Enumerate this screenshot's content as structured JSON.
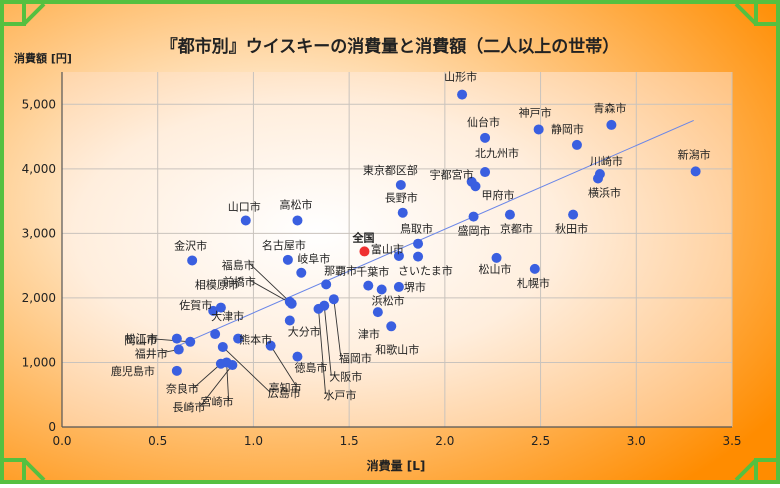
{
  "chart_data": {
    "type": "scatter",
    "title": "『都市別』ウイスキーの消費量と消費額（二人以上の世帯）",
    "xlabel": "消費量 [L]",
    "ylabel": "消費額 [円]",
    "xlim": [
      0,
      3.5
    ],
    "ylim": [
      0,
      5500
    ],
    "x_ticks": [
      "0.0",
      "0.5",
      "1.0",
      "1.5",
      "2.0",
      "2.5",
      "3.0",
      "3.5"
    ],
    "y_ticks": [
      "0",
      "1,000",
      "2,000",
      "3,000",
      "4,000",
      "5,000"
    ],
    "grid": true,
    "trendline": {
      "x1": 0.6,
      "y1": 1250,
      "x2": 3.3,
      "y2": 4750
    },
    "colors": {
      "point": "#3a5fe0",
      "highlight": "#f03030",
      "trend": "#6a86e8",
      "frame": "#55c040",
      "background": "#ff9a1a"
    },
    "highlight": {
      "name": "全国",
      "x": 1.58,
      "y": 2720
    },
    "points": [
      {
        "name": "山形市",
        "x": 2.09,
        "y": 5150
      },
      {
        "name": "青森市",
        "x": 2.87,
        "y": 4680
      },
      {
        "name": "神戸市",
        "x": 2.49,
        "y": 4610
      },
      {
        "name": "仙台市",
        "x": 2.21,
        "y": 4480
      },
      {
        "name": "静岡市",
        "x": 2.69,
        "y": 4370
      },
      {
        "name": "新潟市",
        "x": 3.31,
        "y": 3960
      },
      {
        "name": "川崎市",
        "x": 2.81,
        "y": 3920
      },
      {
        "name": "横浜市",
        "x": 2.8,
        "y": 3850
      },
      {
        "name": "北九州市",
        "x": 2.21,
        "y": 3950
      },
      {
        "name": "宇都宮市",
        "x": 2.14,
        "y": 3800
      },
      {
        "name": "甲府市",
        "x": 2.16,
        "y": 3730
      },
      {
        "name": "東京都区部",
        "x": 1.77,
        "y": 3750
      },
      {
        "name": "長野市",
        "x": 1.78,
        "y": 3320
      },
      {
        "name": "盛岡市",
        "x": 2.15,
        "y": 3260
      },
      {
        "name": "京都市",
        "x": 2.34,
        "y": 3290
      },
      {
        "name": "秋田市",
        "x": 2.67,
        "y": 3290
      },
      {
        "name": "山口市",
        "x": 0.96,
        "y": 3200
      },
      {
        "name": "高松市",
        "x": 1.23,
        "y": 3200
      },
      {
        "name": "鳥取市",
        "x": 1.86,
        "y": 2840
      },
      {
        "name": "富山市",
        "x": 1.76,
        "y": 2650
      },
      {
        "name": "さいたま市",
        "x": 1.86,
        "y": 2640
      },
      {
        "name": "松山市",
        "x": 2.27,
        "y": 2620
      },
      {
        "name": "札幌市",
        "x": 2.47,
        "y": 2450
      },
      {
        "name": "金沢市",
        "x": 0.68,
        "y": 2580
      },
      {
        "name": "名古屋市",
        "x": 1.18,
        "y": 2590
      },
      {
        "name": "岐阜市",
        "x": 1.25,
        "y": 2390
      },
      {
        "name": "福島市",
        "x": 1.19,
        "y": 1940
      },
      {
        "name": "前橋市",
        "x": 1.2,
        "y": 1910
      },
      {
        "name": "那覇市",
        "x": 1.38,
        "y": 2210
      },
      {
        "name": "千葉市",
        "x": 1.6,
        "y": 2190
      },
      {
        "name": "堺市",
        "x": 1.76,
        "y": 2170
      },
      {
        "name": "浜松市",
        "x": 1.67,
        "y": 2130
      },
      {
        "name": "福岡市",
        "x": 1.42,
        "y": 1980
      },
      {
        "name": "大阪市",
        "x": 1.37,
        "y": 1880
      },
      {
        "name": "水戸市",
        "x": 1.34,
        "y": 1830
      },
      {
        "name": "大分市",
        "x": 1.19,
        "y": 1650
      },
      {
        "name": "津市",
        "x": 1.65,
        "y": 1780
      },
      {
        "name": "和歌山市",
        "x": 1.72,
        "y": 1560
      },
      {
        "name": "相模原市",
        "x": 0.83,
        "y": 1850
      },
      {
        "name": "佐賀市",
        "x": 0.79,
        "y": 1800
      },
      {
        "name": "岡山市",
        "x": 0.67,
        "y": 1320
      },
      {
        "name": "松江市",
        "x": 0.6,
        "y": 1370
      },
      {
        "name": "福井市",
        "x": 0.61,
        "y": 1200
      },
      {
        "name": "大津市",
        "x": 0.8,
        "y": 1440
      },
      {
        "name": "熊本市",
        "x": 0.92,
        "y": 1370
      },
      {
        "name": "徳島市",
        "x": 1.23,
        "y": 1090
      },
      {
        "name": "高知市",
        "x": 1.09,
        "y": 1260
      },
      {
        "name": "広島市",
        "x": 0.84,
        "y": 1240
      },
      {
        "name": "宮崎市",
        "x": 0.86,
        "y": 1000
      },
      {
        "name": "奈良市",
        "x": 0.83,
        "y": 980
      },
      {
        "name": "長崎市",
        "x": 0.89,
        "y": 960
      },
      {
        "name": "鹿児島市",
        "x": 0.6,
        "y": 870
      }
    ]
  }
}
